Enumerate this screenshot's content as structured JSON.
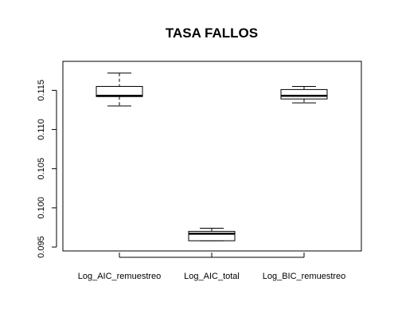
{
  "chart_data": {
    "type": "box",
    "title": "TASA FALLOS",
    "xlabel": "",
    "ylabel": "",
    "ylim": [
      0.0945,
      0.1187
    ],
    "y_ticks": [
      0.095,
      0.1,
      0.105,
      0.11,
      0.115
    ],
    "y_tick_labels": [
      "0.095",
      "0.100",
      "0.105",
      "0.110",
      "0.115"
    ],
    "categories": [
      "Log_AIC_remuestreo",
      "Log_AIC_total",
      "Log_BIC_remuestreo"
    ],
    "boxes": [
      {
        "name": "Log_AIC_remuestreo",
        "whisker_low": 0.113,
        "q1": 0.1142,
        "median": 0.1143,
        "q3": 0.1155,
        "whisker_high": 0.1172
      },
      {
        "name": "Log_AIC_total",
        "whisker_low": 0.0958,
        "q1": 0.0958,
        "median": 0.0967,
        "q3": 0.097,
        "whisker_high": 0.0974
      },
      {
        "name": "Log_BIC_remuestreo",
        "whisker_low": 0.1134,
        "q1": 0.1139,
        "median": 0.1143,
        "q3": 0.1151,
        "whisker_high": 0.1155
      }
    ],
    "grid": false,
    "legend": "none",
    "colors": {
      "box_fill": "#ffffff",
      "stroke": "#000000",
      "background": "#ffffff"
    }
  }
}
